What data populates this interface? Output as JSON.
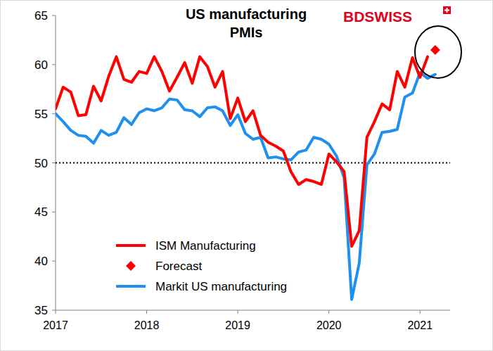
{
  "chart_data": {
    "type": "line",
    "title": "US manufacturing PMIs",
    "logo": "BDSWISS",
    "x": [
      2017,
      2017.083,
      2017.167,
      2017.25,
      2017.333,
      2017.417,
      2017.5,
      2017.583,
      2017.667,
      2017.75,
      2017.833,
      2017.917,
      2018,
      2018.083,
      2018.167,
      2018.25,
      2018.333,
      2018.417,
      2018.5,
      2018.583,
      2018.667,
      2018.75,
      2018.833,
      2018.917,
      2019,
      2019.083,
      2019.167,
      2019.25,
      2019.333,
      2019.417,
      2019.5,
      2019.583,
      2019.667,
      2019.75,
      2019.833,
      2019.917,
      2020,
      2020.083,
      2020.167,
      2020.25,
      2020.333,
      2020.417,
      2020.5,
      2020.583,
      2020.667,
      2020.75,
      2020.833,
      2020.917,
      2021,
      2021.083,
      2021.167
    ],
    "xlim": [
      2017,
      2021.33
    ],
    "xticks": [
      2017,
      2018,
      2019,
      2020,
      2021
    ],
    "ylim": [
      35,
      65
    ],
    "yticks": [
      35,
      40,
      45,
      50,
      55,
      60,
      65
    ],
    "reference_lines": [
      50
    ],
    "grid": false,
    "legend": "lower left",
    "series": [
      {
        "name": "ISM Manufacturing",
        "color": "#ff0000",
        "type": "line",
        "line_style": "solid",
        "values": [
          55.5,
          57.7,
          57.2,
          54.8,
          54.9,
          57.8,
          56.3,
          58.8,
          60.8,
          58.5,
          58.2,
          59.3,
          59.1,
          60.8,
          59.3,
          57.3,
          58.7,
          60.2,
          58.1,
          60.8,
          59.8,
          57.7,
          59.3,
          54.5,
          56.6,
          54.2,
          55.3,
          52.8,
          52.1,
          51.7,
          51.2,
          49.1,
          47.8,
          48.3,
          48.1,
          47.8,
          50.9,
          50.1,
          49.1,
          41.5,
          43.1,
          52.6,
          54.2,
          56.0,
          55.4,
          59.3,
          57.7,
          60.7,
          58.7,
          60.8,
          null
        ]
      },
      {
        "name": "Forecast",
        "color": "#ff0000",
        "type": "scatter",
        "marker": "diamond",
        "line_style": "none",
        "values": [
          null,
          null,
          null,
          null,
          null,
          null,
          null,
          null,
          null,
          null,
          null,
          null,
          null,
          null,
          null,
          null,
          null,
          null,
          null,
          null,
          null,
          null,
          null,
          null,
          null,
          null,
          null,
          null,
          null,
          null,
          null,
          null,
          null,
          null,
          null,
          null,
          null,
          null,
          null,
          null,
          null,
          null,
          null,
          null,
          null,
          null,
          null,
          null,
          null,
          null,
          61.5
        ]
      },
      {
        "name": "Markit US manufacturing",
        "color": "#1f8ff0",
        "type": "line",
        "line_style": "solid",
        "values": [
          55.0,
          54.2,
          53.3,
          52.8,
          52.7,
          52.0,
          53.3,
          52.8,
          53.1,
          54.6,
          53.9,
          55.1,
          55.5,
          55.3,
          55.6,
          56.5,
          56.4,
          55.4,
          55.3,
          54.7,
          55.6,
          55.7,
          55.3,
          53.8,
          54.9,
          53.0,
          52.4,
          52.6,
          50.5,
          50.6,
          50.4,
          50.3,
          51.1,
          51.3,
          52.6,
          52.4,
          51.9,
          50.7,
          48.5,
          36.1,
          39.8,
          49.8,
          50.9,
          53.1,
          53.2,
          53.4,
          56.7,
          57.1,
          59.2,
          58.6,
          59.0
        ]
      }
    ]
  }
}
